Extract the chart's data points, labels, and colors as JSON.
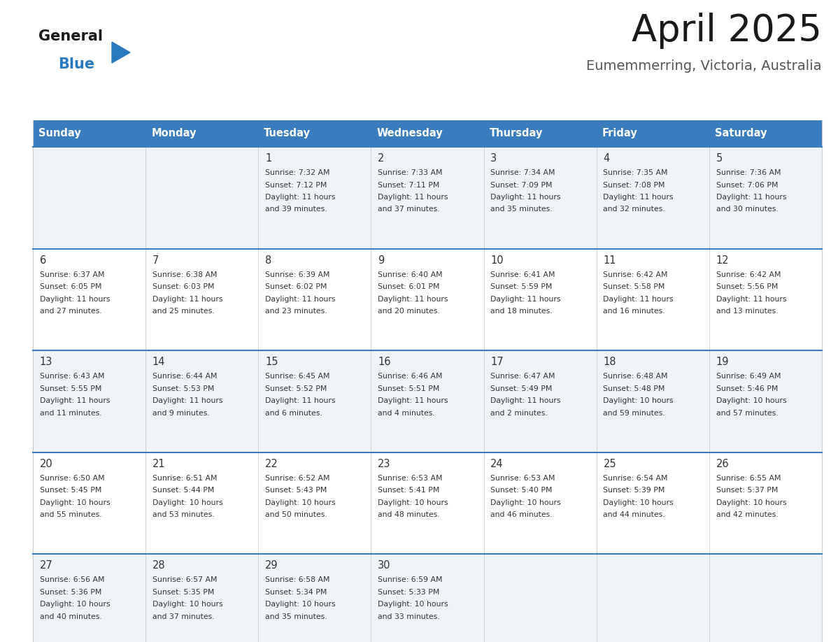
{
  "title": "April 2025",
  "subtitle": "Eumemmerring, Victoria, Australia",
  "days_of_week": [
    "Sunday",
    "Monday",
    "Tuesday",
    "Wednesday",
    "Thursday",
    "Friday",
    "Saturday"
  ],
  "header_bg": "#3a7dbf",
  "header_text_color": "#ffffff",
  "row_bg_odd": "#f0f4f8",
  "row_bg_even": "#ffffff",
  "divider_color": "#3a7dbf",
  "cell_border_color": "#cccccc",
  "text_color": "#333333",
  "title_color": "#1a1a1a",
  "subtitle_color": "#555555",
  "logo_general_color": "#1a1a1a",
  "logo_blue_color": "#2a7abf",
  "weeks": [
    {
      "days": [
        {
          "date": "",
          "sunrise": "",
          "sunset": "",
          "daylight": ""
        },
        {
          "date": "",
          "sunrise": "",
          "sunset": "",
          "daylight": ""
        },
        {
          "date": "1",
          "sunrise": "7:32 AM",
          "sunset": "7:12 PM",
          "daylight": "11 hours\nand 39 minutes."
        },
        {
          "date": "2",
          "sunrise": "7:33 AM",
          "sunset": "7:11 PM",
          "daylight": "11 hours\nand 37 minutes."
        },
        {
          "date": "3",
          "sunrise": "7:34 AM",
          "sunset": "7:09 PM",
          "daylight": "11 hours\nand 35 minutes."
        },
        {
          "date": "4",
          "sunrise": "7:35 AM",
          "sunset": "7:08 PM",
          "daylight": "11 hours\nand 32 minutes."
        },
        {
          "date": "5",
          "sunrise": "7:36 AM",
          "sunset": "7:06 PM",
          "daylight": "11 hours\nand 30 minutes."
        }
      ]
    },
    {
      "days": [
        {
          "date": "6",
          "sunrise": "6:37 AM",
          "sunset": "6:05 PM",
          "daylight": "11 hours\nand 27 minutes."
        },
        {
          "date": "7",
          "sunrise": "6:38 AM",
          "sunset": "6:03 PM",
          "daylight": "11 hours\nand 25 minutes."
        },
        {
          "date": "8",
          "sunrise": "6:39 AM",
          "sunset": "6:02 PM",
          "daylight": "11 hours\nand 23 minutes."
        },
        {
          "date": "9",
          "sunrise": "6:40 AM",
          "sunset": "6:01 PM",
          "daylight": "11 hours\nand 20 minutes."
        },
        {
          "date": "10",
          "sunrise": "6:41 AM",
          "sunset": "5:59 PM",
          "daylight": "11 hours\nand 18 minutes."
        },
        {
          "date": "11",
          "sunrise": "6:42 AM",
          "sunset": "5:58 PM",
          "daylight": "11 hours\nand 16 minutes."
        },
        {
          "date": "12",
          "sunrise": "6:42 AM",
          "sunset": "5:56 PM",
          "daylight": "11 hours\nand 13 minutes."
        }
      ]
    },
    {
      "days": [
        {
          "date": "13",
          "sunrise": "6:43 AM",
          "sunset": "5:55 PM",
          "daylight": "11 hours\nand 11 minutes."
        },
        {
          "date": "14",
          "sunrise": "6:44 AM",
          "sunset": "5:53 PM",
          "daylight": "11 hours\nand 9 minutes."
        },
        {
          "date": "15",
          "sunrise": "6:45 AM",
          "sunset": "5:52 PM",
          "daylight": "11 hours\nand 6 minutes."
        },
        {
          "date": "16",
          "sunrise": "6:46 AM",
          "sunset": "5:51 PM",
          "daylight": "11 hours\nand 4 minutes."
        },
        {
          "date": "17",
          "sunrise": "6:47 AM",
          "sunset": "5:49 PM",
          "daylight": "11 hours\nand 2 minutes."
        },
        {
          "date": "18",
          "sunrise": "6:48 AM",
          "sunset": "5:48 PM",
          "daylight": "10 hours\nand 59 minutes."
        },
        {
          "date": "19",
          "sunrise": "6:49 AM",
          "sunset": "5:46 PM",
          "daylight": "10 hours\nand 57 minutes."
        }
      ]
    },
    {
      "days": [
        {
          "date": "20",
          "sunrise": "6:50 AM",
          "sunset": "5:45 PM",
          "daylight": "10 hours\nand 55 minutes."
        },
        {
          "date": "21",
          "sunrise": "6:51 AM",
          "sunset": "5:44 PM",
          "daylight": "10 hours\nand 53 minutes."
        },
        {
          "date": "22",
          "sunrise": "6:52 AM",
          "sunset": "5:43 PM",
          "daylight": "10 hours\nand 50 minutes."
        },
        {
          "date": "23",
          "sunrise": "6:53 AM",
          "sunset": "5:41 PM",
          "daylight": "10 hours\nand 48 minutes."
        },
        {
          "date": "24",
          "sunrise": "6:53 AM",
          "sunset": "5:40 PM",
          "daylight": "10 hours\nand 46 minutes."
        },
        {
          "date": "25",
          "sunrise": "6:54 AM",
          "sunset": "5:39 PM",
          "daylight": "10 hours\nand 44 minutes."
        },
        {
          "date": "26",
          "sunrise": "6:55 AM",
          "sunset": "5:37 PM",
          "daylight": "10 hours\nand 42 minutes."
        }
      ]
    },
    {
      "days": [
        {
          "date": "27",
          "sunrise": "6:56 AM",
          "sunset": "5:36 PM",
          "daylight": "10 hours\nand 40 minutes."
        },
        {
          "date": "28",
          "sunrise": "6:57 AM",
          "sunset": "5:35 PM",
          "daylight": "10 hours\nand 37 minutes."
        },
        {
          "date": "29",
          "sunrise": "6:58 AM",
          "sunset": "5:34 PM",
          "daylight": "10 hours\nand 35 minutes."
        },
        {
          "date": "30",
          "sunrise": "6:59 AM",
          "sunset": "5:33 PM",
          "daylight": "10 hours\nand 33 minutes."
        },
        {
          "date": "",
          "sunrise": "",
          "sunset": "",
          "daylight": ""
        },
        {
          "date": "",
          "sunrise": "",
          "sunset": "",
          "daylight": ""
        },
        {
          "date": "",
          "sunrise": "",
          "sunset": "",
          "daylight": ""
        }
      ]
    }
  ]
}
